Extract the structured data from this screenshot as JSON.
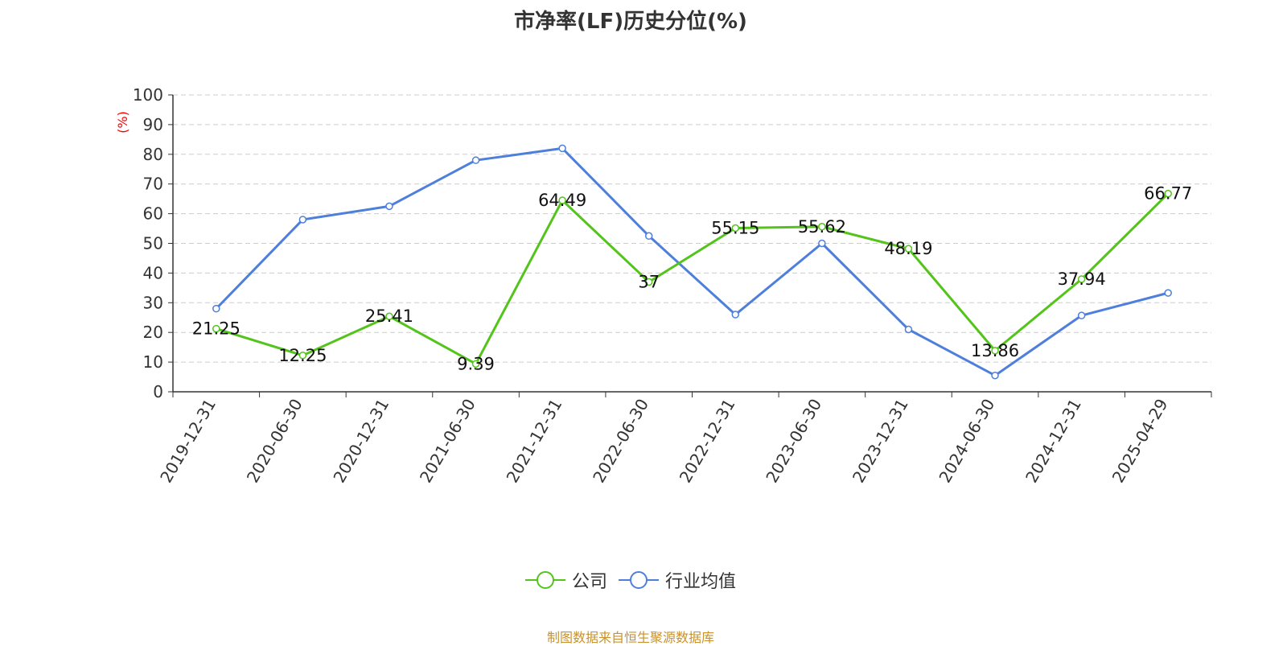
{
  "source_note": "制图数据来自恒生聚源数据库",
  "chart_data": {
    "type": "line",
    "title": "市净率(LF)历史分位(%)",
    "ylabel": "(%)",
    "xlabel": "",
    "ylim": [
      0,
      100
    ],
    "yticks": [
      0,
      10,
      20,
      30,
      40,
      50,
      60,
      70,
      80,
      90,
      100
    ],
    "grid": true,
    "legend_position": "bottom",
    "categories": [
      "2019-12-31",
      "2020-06-30",
      "2020-12-31",
      "2021-06-30",
      "2021-12-31",
      "2022-06-30",
      "2022-12-31",
      "2023-06-30",
      "2023-12-31",
      "2024-06-30",
      "2024-12-31",
      "2025-04-29"
    ],
    "series": [
      {
        "name": "公司",
        "color": "#52c41a",
        "show_labels": true,
        "values": [
          21.25,
          12.25,
          25.41,
          9.39,
          64.49,
          37,
          55.15,
          55.62,
          48.19,
          13.86,
          37.94,
          66.77
        ]
      },
      {
        "name": "行业均值",
        "color": "#4e7fdc",
        "show_labels": false,
        "values": [
          28,
          58,
          62.5,
          78,
          82,
          52.5,
          26,
          50,
          21,
          5.5,
          25.7,
          33.3
        ]
      }
    ],
    "ylabel_color": "#ff0000"
  }
}
